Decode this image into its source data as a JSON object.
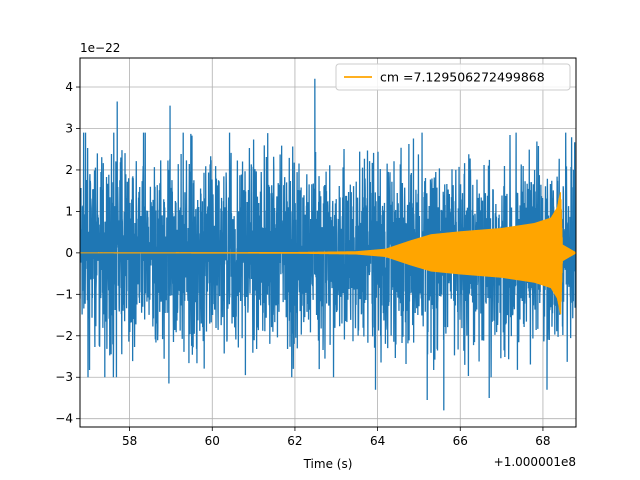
{
  "chart_data": {
    "type": "line",
    "xlabel": "Time (s)",
    "ylabel": "",
    "x_offset_label": "+1.000001e8",
    "y_scale_label": "1e−22",
    "xlim": [
      56.8,
      68.8
    ],
    "ylim": [
      -4.2,
      4.7
    ],
    "x_ticks": [
      58,
      60,
      62,
      64,
      66,
      68
    ],
    "x_tick_labels": [
      "58",
      "60",
      "62",
      "64",
      "66",
      "68"
    ],
    "y_ticks": [
      -4,
      -3,
      -2,
      -1,
      0,
      1,
      2,
      3,
      4
    ],
    "y_tick_labels": [
      "−4",
      "−3",
      "−2",
      "−1",
      "0",
      "1",
      "2",
      "3",
      "4"
    ],
    "grid": true,
    "legend_position": "top-right",
    "series": [
      {
        "name": "",
        "color": "#1f77b4",
        "kind": "noise",
        "typical_amplitude": 2.0,
        "peaks": [
          {
            "x": 57.7,
            "y": 3.65
          },
          {
            "x": 58.98,
            "y": 3.55
          },
          {
            "x": 62.48,
            "y": 4.2
          },
          {
            "x": 65.6,
            "y": -3.8
          },
          {
            "x": 57.4,
            "y": -3.0
          },
          {
            "x": 58.95,
            "y": -3.15
          },
          {
            "x": 63.95,
            "y": -3.3
          },
          {
            "x": 66.7,
            "y": -3.5
          },
          {
            "x": 68.1,
            "y": -3.3
          },
          {
            "x": 60.8,
            "y": -2.95
          },
          {
            "x": 65.2,
            "y": -3.55
          }
        ]
      },
      {
        "name": "cm =7.129506272499868",
        "color": "#ffa500",
        "kind": "chirp",
        "points": [
          {
            "x": 56.8,
            "y": 0.01
          },
          {
            "x": 62.0,
            "y": 0.02
          },
          {
            "x": 63.5,
            "y": 0.04
          },
          {
            "x": 64.2,
            "y": 0.1
          },
          {
            "x": 64.8,
            "y": 0.3
          },
          {
            "x": 65.3,
            "y": 0.45
          },
          {
            "x": 66.0,
            "y": 0.52
          },
          {
            "x": 67.0,
            "y": 0.6
          },
          {
            "x": 67.8,
            "y": 0.72
          },
          {
            "x": 68.2,
            "y": 0.85
          },
          {
            "x": 68.35,
            "y": 1.1
          },
          {
            "x": 68.43,
            "y": 1.5
          },
          {
            "x": 68.47,
            "y": 0.2
          },
          {
            "x": 68.8,
            "y": 0.01
          }
        ],
        "min_point": {
          "x": 68.43,
          "y": -1.0
        }
      }
    ]
  }
}
